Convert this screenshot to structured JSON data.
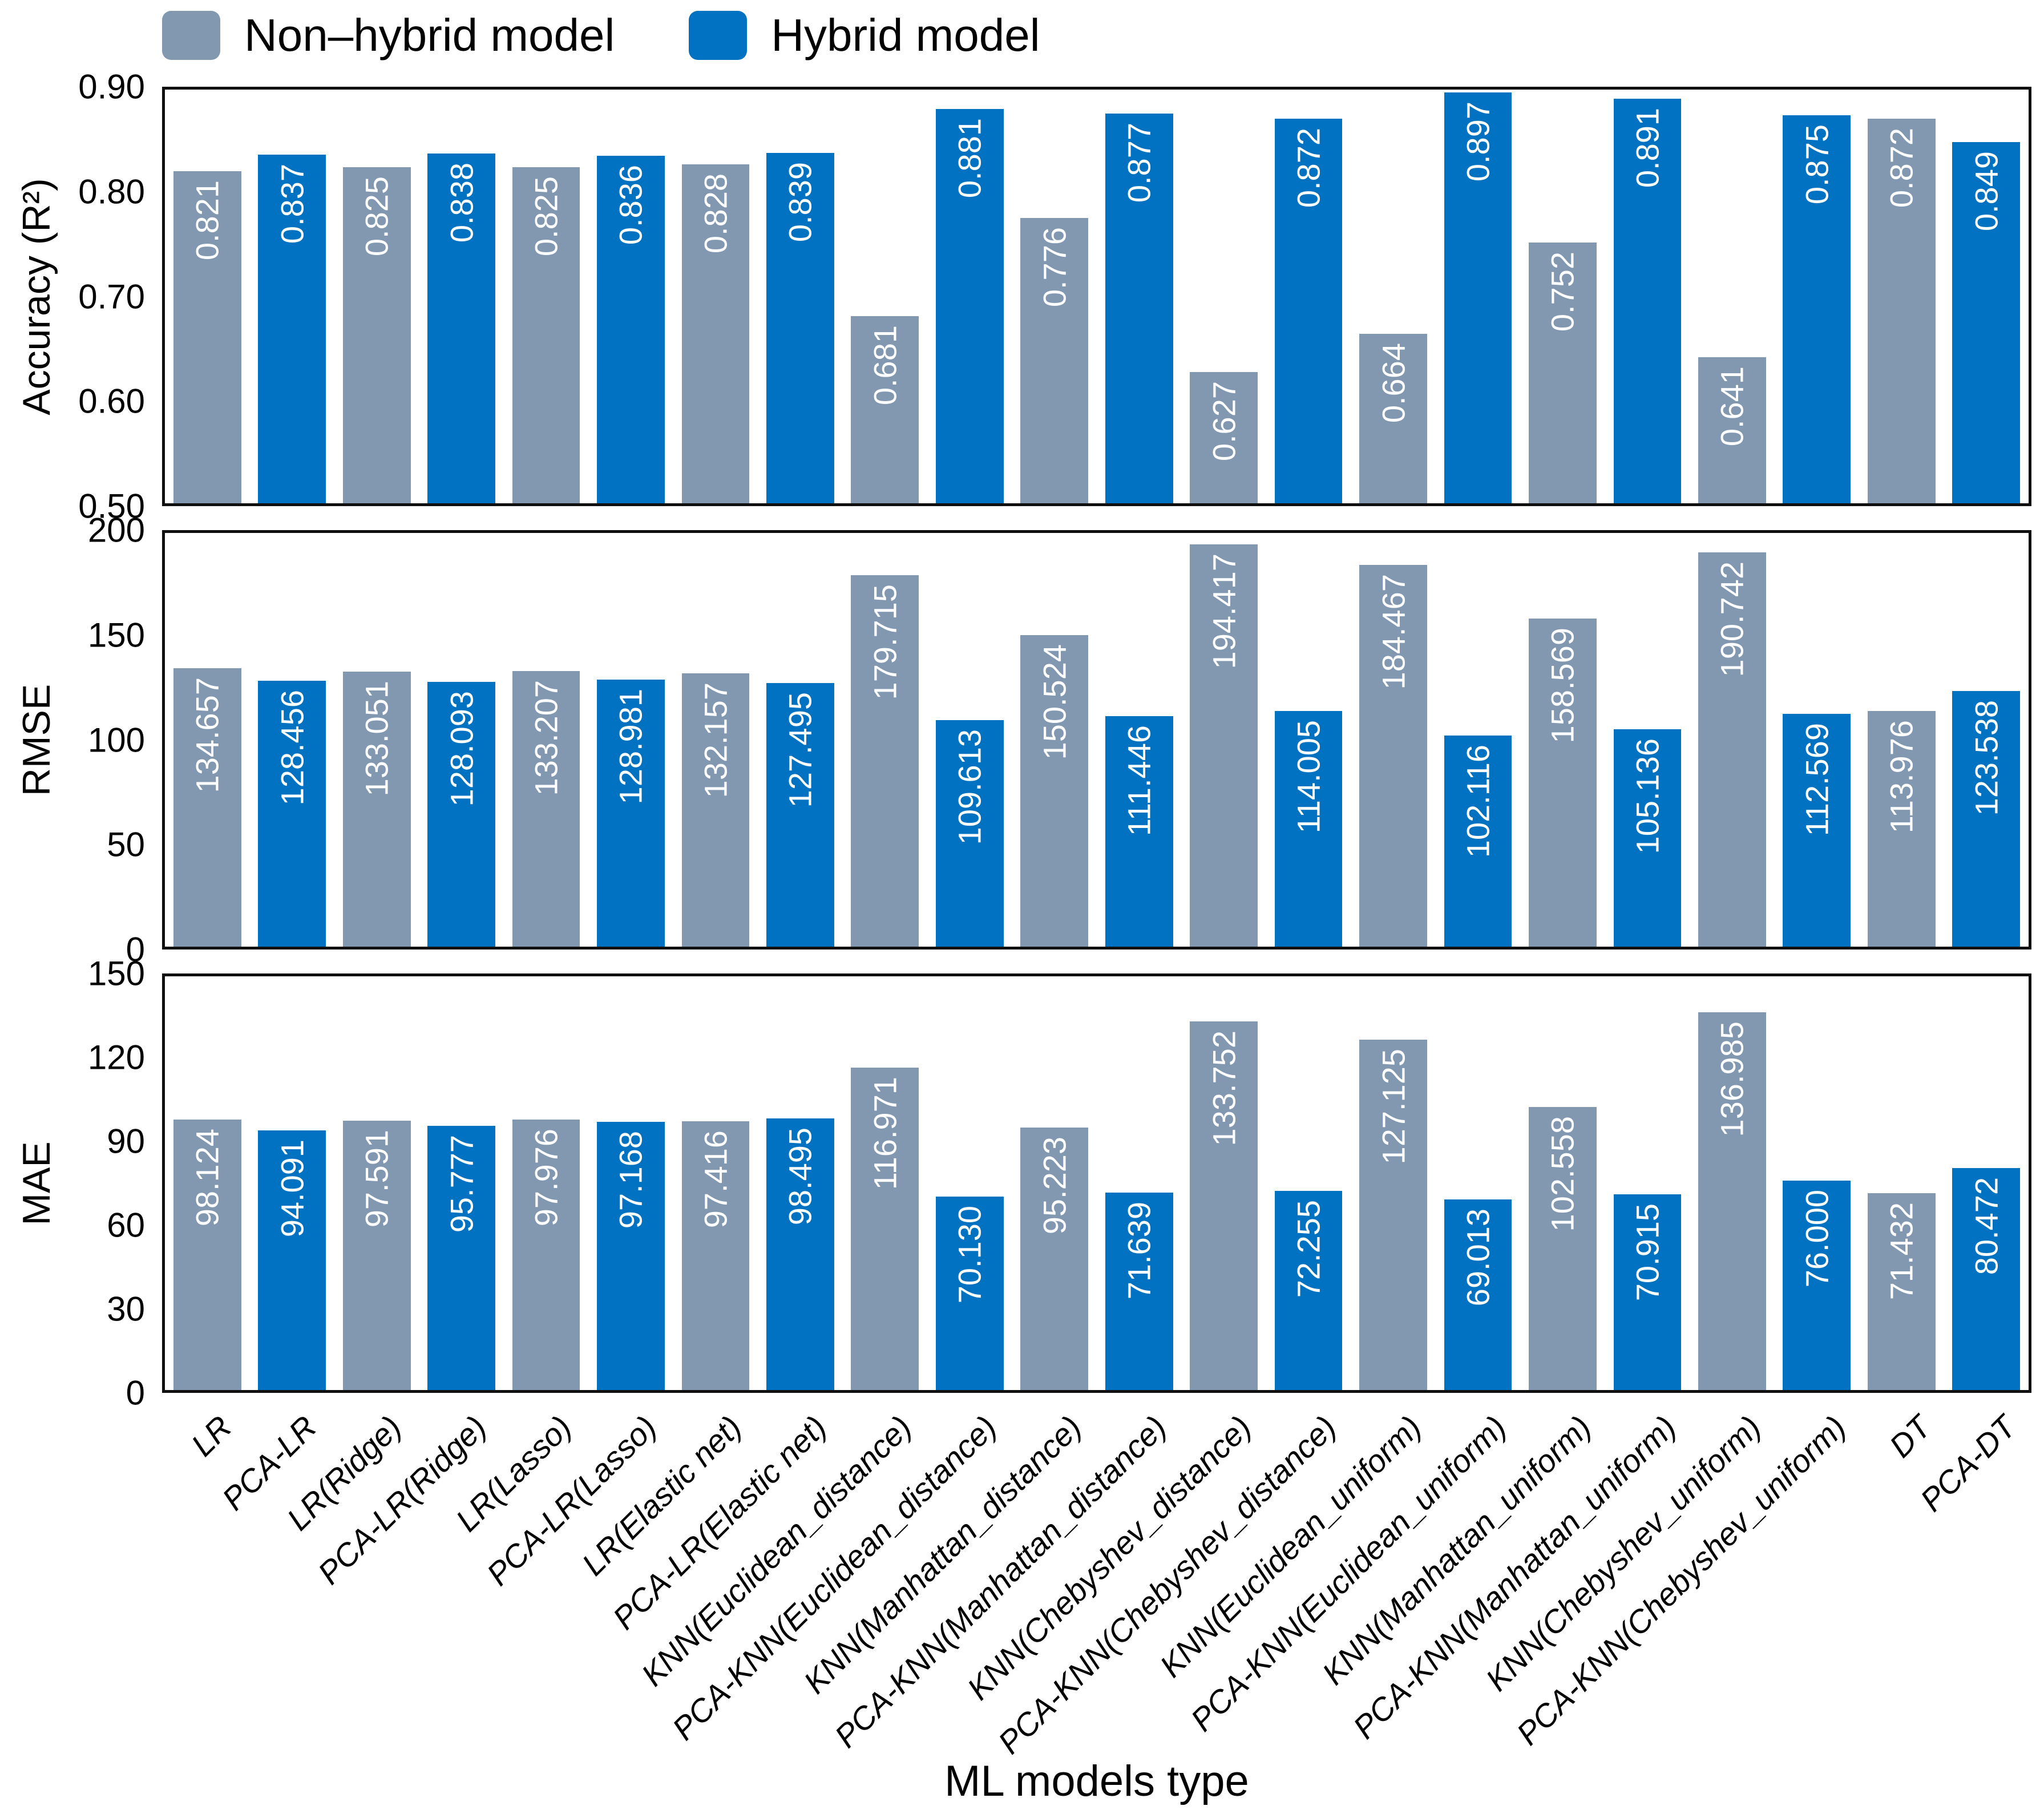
{
  "legend": {
    "items": [
      {
        "label": "Non–hybrid model",
        "key": "non-hybrid",
        "color": "#8298B1"
      },
      {
        "label": "Hybrid model",
        "key": "hybrid",
        "color": "#0072C1"
      }
    ]
  },
  "xlabel": "ML models type",
  "categories": [
    {
      "label": "LR",
      "group": "non-hybrid"
    },
    {
      "label": "PCA-LR",
      "group": "hybrid"
    },
    {
      "label": "LR(Ridge)",
      "group": "non-hybrid"
    },
    {
      "label": "PCA-LR(Ridge)",
      "group": "hybrid"
    },
    {
      "label": "LR(Lasso)",
      "group": "non-hybrid"
    },
    {
      "label": "PCA-LR(Lasso)",
      "group": "hybrid"
    },
    {
      "label": "LR(Elastic net)",
      "group": "non-hybrid"
    },
    {
      "label": "PCA-LR(Elastic net)",
      "group": "hybrid"
    },
    {
      "label": "KNN(Euclidean_distance)",
      "group": "non-hybrid"
    },
    {
      "label": "PCA-KNN(Euclidean_distance)",
      "group": "hybrid"
    },
    {
      "label": "KNN(Manhattan_distance)",
      "group": "non-hybrid"
    },
    {
      "label": "PCA-KNN(Manhattan_distance)",
      "group": "hybrid"
    },
    {
      "label": "KNN(Chebyshev_distance)",
      "group": "non-hybrid"
    },
    {
      "label": "PCA-KNN(Chebyshev_distance)",
      "group": "hybrid"
    },
    {
      "label": "KNN(Euclidean_uniform)",
      "group": "non-hybrid"
    },
    {
      "label": "PCA-KNN(Euclidean_uniform)",
      "group": "hybrid"
    },
    {
      "label": "KNN(Manhattan_uniform)",
      "group": "non-hybrid"
    },
    {
      "label": "PCA-KNN(Manhattan_uniform)",
      "group": "hybrid"
    },
    {
      "label": "KNN(Chebyshev_uniform)",
      "group": "non-hybrid"
    },
    {
      "label": "PCA-KNN(Chebyshev_uniform)",
      "group": "hybrid"
    },
    {
      "label": "DT",
      "group": "non-hybrid"
    },
    {
      "label": "PCA-DT",
      "group": "hybrid"
    }
  ],
  "chart_data": [
    {
      "type": "bar",
      "ylabel": "Accuracy (R²)",
      "ylim": [
        0.5,
        0.9
      ],
      "yticks": [
        "0.50",
        "0.60",
        "0.70",
        "0.80",
        "0.90"
      ],
      "value_decimals": 3,
      "values": [
        0.821,
        0.837,
        0.825,
        0.838,
        0.825,
        0.836,
        0.828,
        0.839,
        0.681,
        0.881,
        0.776,
        0.877,
        0.627,
        0.872,
        0.664,
        0.897,
        0.752,
        0.891,
        0.641,
        0.875,
        0.872,
        0.849
      ]
    },
    {
      "type": "bar",
      "ylabel": "RMSE",
      "ylim": [
        0,
        200
      ],
      "yticks": [
        "0",
        "50",
        "100",
        "150",
        "200"
      ],
      "value_decimals": 3,
      "values": [
        134.657,
        128.456,
        133.051,
        128.093,
        133.207,
        128.981,
        132.157,
        127.495,
        179.715,
        109.613,
        150.524,
        111.446,
        194.417,
        114.005,
        184.467,
        102.116,
        158.569,
        105.136,
        190.742,
        112.569,
        113.976,
        123.538
      ]
    },
    {
      "type": "bar",
      "ylabel": "MAE",
      "ylim": [
        0,
        150
      ],
      "yticks": [
        "0",
        "30",
        "60",
        "90",
        "120",
        "150"
      ],
      "value_decimals": 3,
      "values": [
        98.124,
        94.091,
        97.591,
        95.777,
        97.976,
        97.168,
        97.416,
        98.495,
        116.971,
        70.13,
        95.223,
        71.639,
        133.752,
        72.255,
        127.125,
        69.013,
        102.558,
        70.915,
        136.985,
        76.0,
        71.432,
        80.472
      ]
    }
  ]
}
